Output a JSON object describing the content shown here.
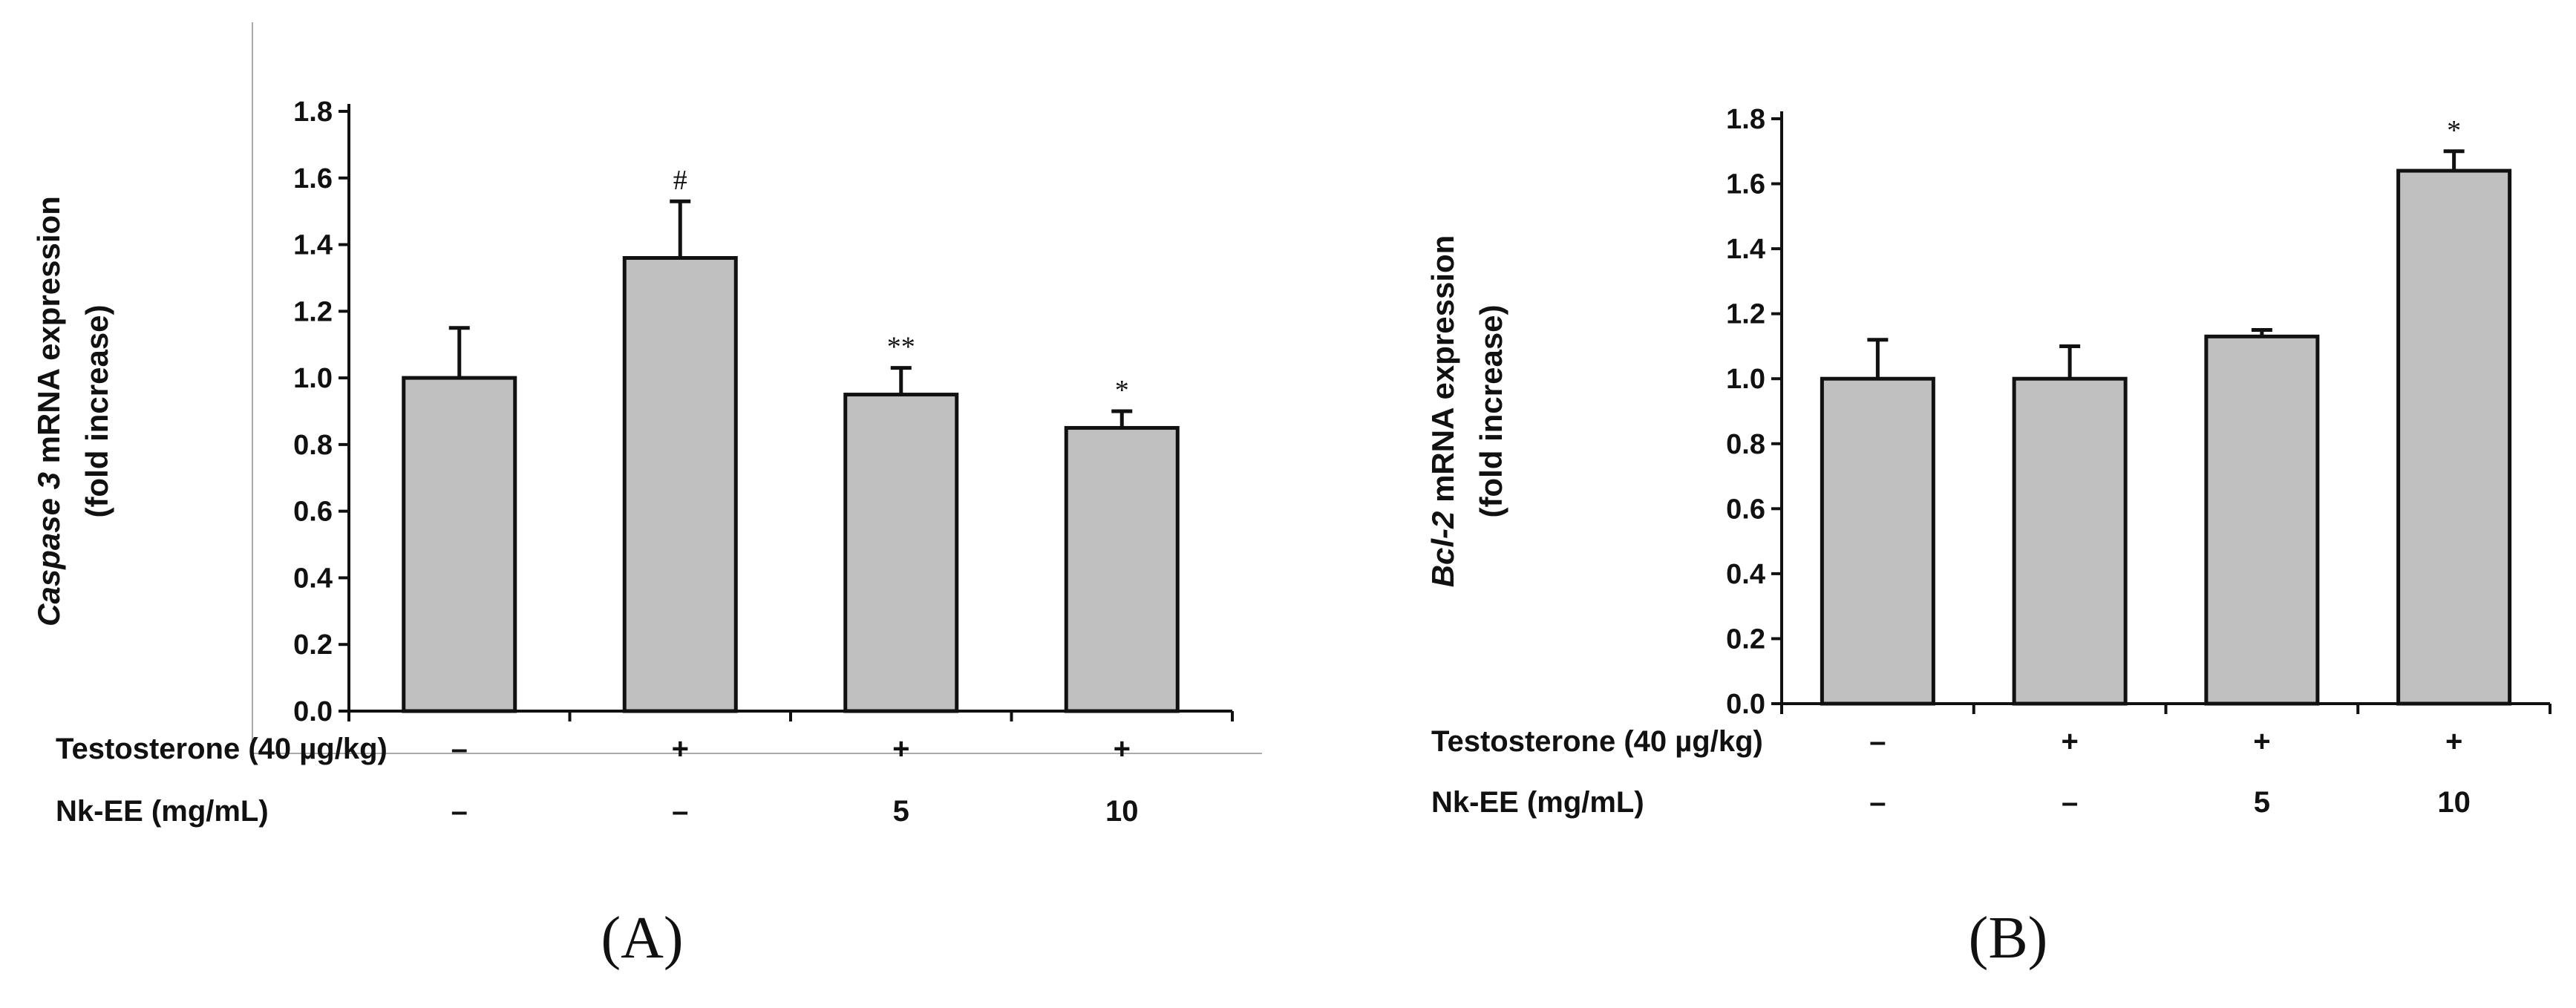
{
  "chart_data": [
    {
      "panel_label": "(A)",
      "type": "bar",
      "ylabel_italic": "Caspase 3",
      "ylabel_rest": " mRNA expression",
      "ylabel_line2": "(fold increase)",
      "ylim": [
        0,
        1.8
      ],
      "yticks": [
        "0.0",
        "0.2",
        "0.4",
        "0.6",
        "0.8",
        "1.0",
        "1.2",
        "1.4",
        "1.6",
        "1.8"
      ],
      "values": [
        1.0,
        1.36,
        0.95,
        0.85
      ],
      "errors": [
        0.15,
        0.17,
        0.08,
        0.05
      ],
      "significance": [
        "",
        "#",
        "**",
        "*"
      ],
      "rows": [
        {
          "label": "Testosterone (40 µg/kg)",
          "values": [
            "–",
            "+",
            "+",
            "+"
          ]
        },
        {
          "label": "Nk-EE (mg/mL)",
          "values": [
            "–",
            "–",
            "5",
            "10"
          ]
        }
      ],
      "bar_color": "#c0c0c0"
    },
    {
      "panel_label": "(B)",
      "type": "bar",
      "ylabel_italic": "Bcl-2",
      "ylabel_rest": " mRNA expression",
      "ylabel_line2": "(fold increase)",
      "ylim": [
        0,
        1.8
      ],
      "yticks": [
        "0.0",
        "0.2",
        "0.4",
        "0.6",
        "0.8",
        "1.0",
        "1.2",
        "1.4",
        "1.6",
        "1.8"
      ],
      "values": [
        1.0,
        1.0,
        1.13,
        1.64
      ],
      "errors": [
        0.12,
        0.1,
        0.02,
        0.06
      ],
      "significance": [
        "",
        "",
        "",
        "*"
      ],
      "rows": [
        {
          "label": "Testosterone (40 µg/kg)",
          "values": [
            "–",
            "+",
            "+",
            "+"
          ]
        },
        {
          "label": "Nk-EE (mg/mL)",
          "values": [
            "–",
            "–",
            "5",
            "10"
          ]
        }
      ],
      "bar_color": "#c0c0c0"
    }
  ]
}
